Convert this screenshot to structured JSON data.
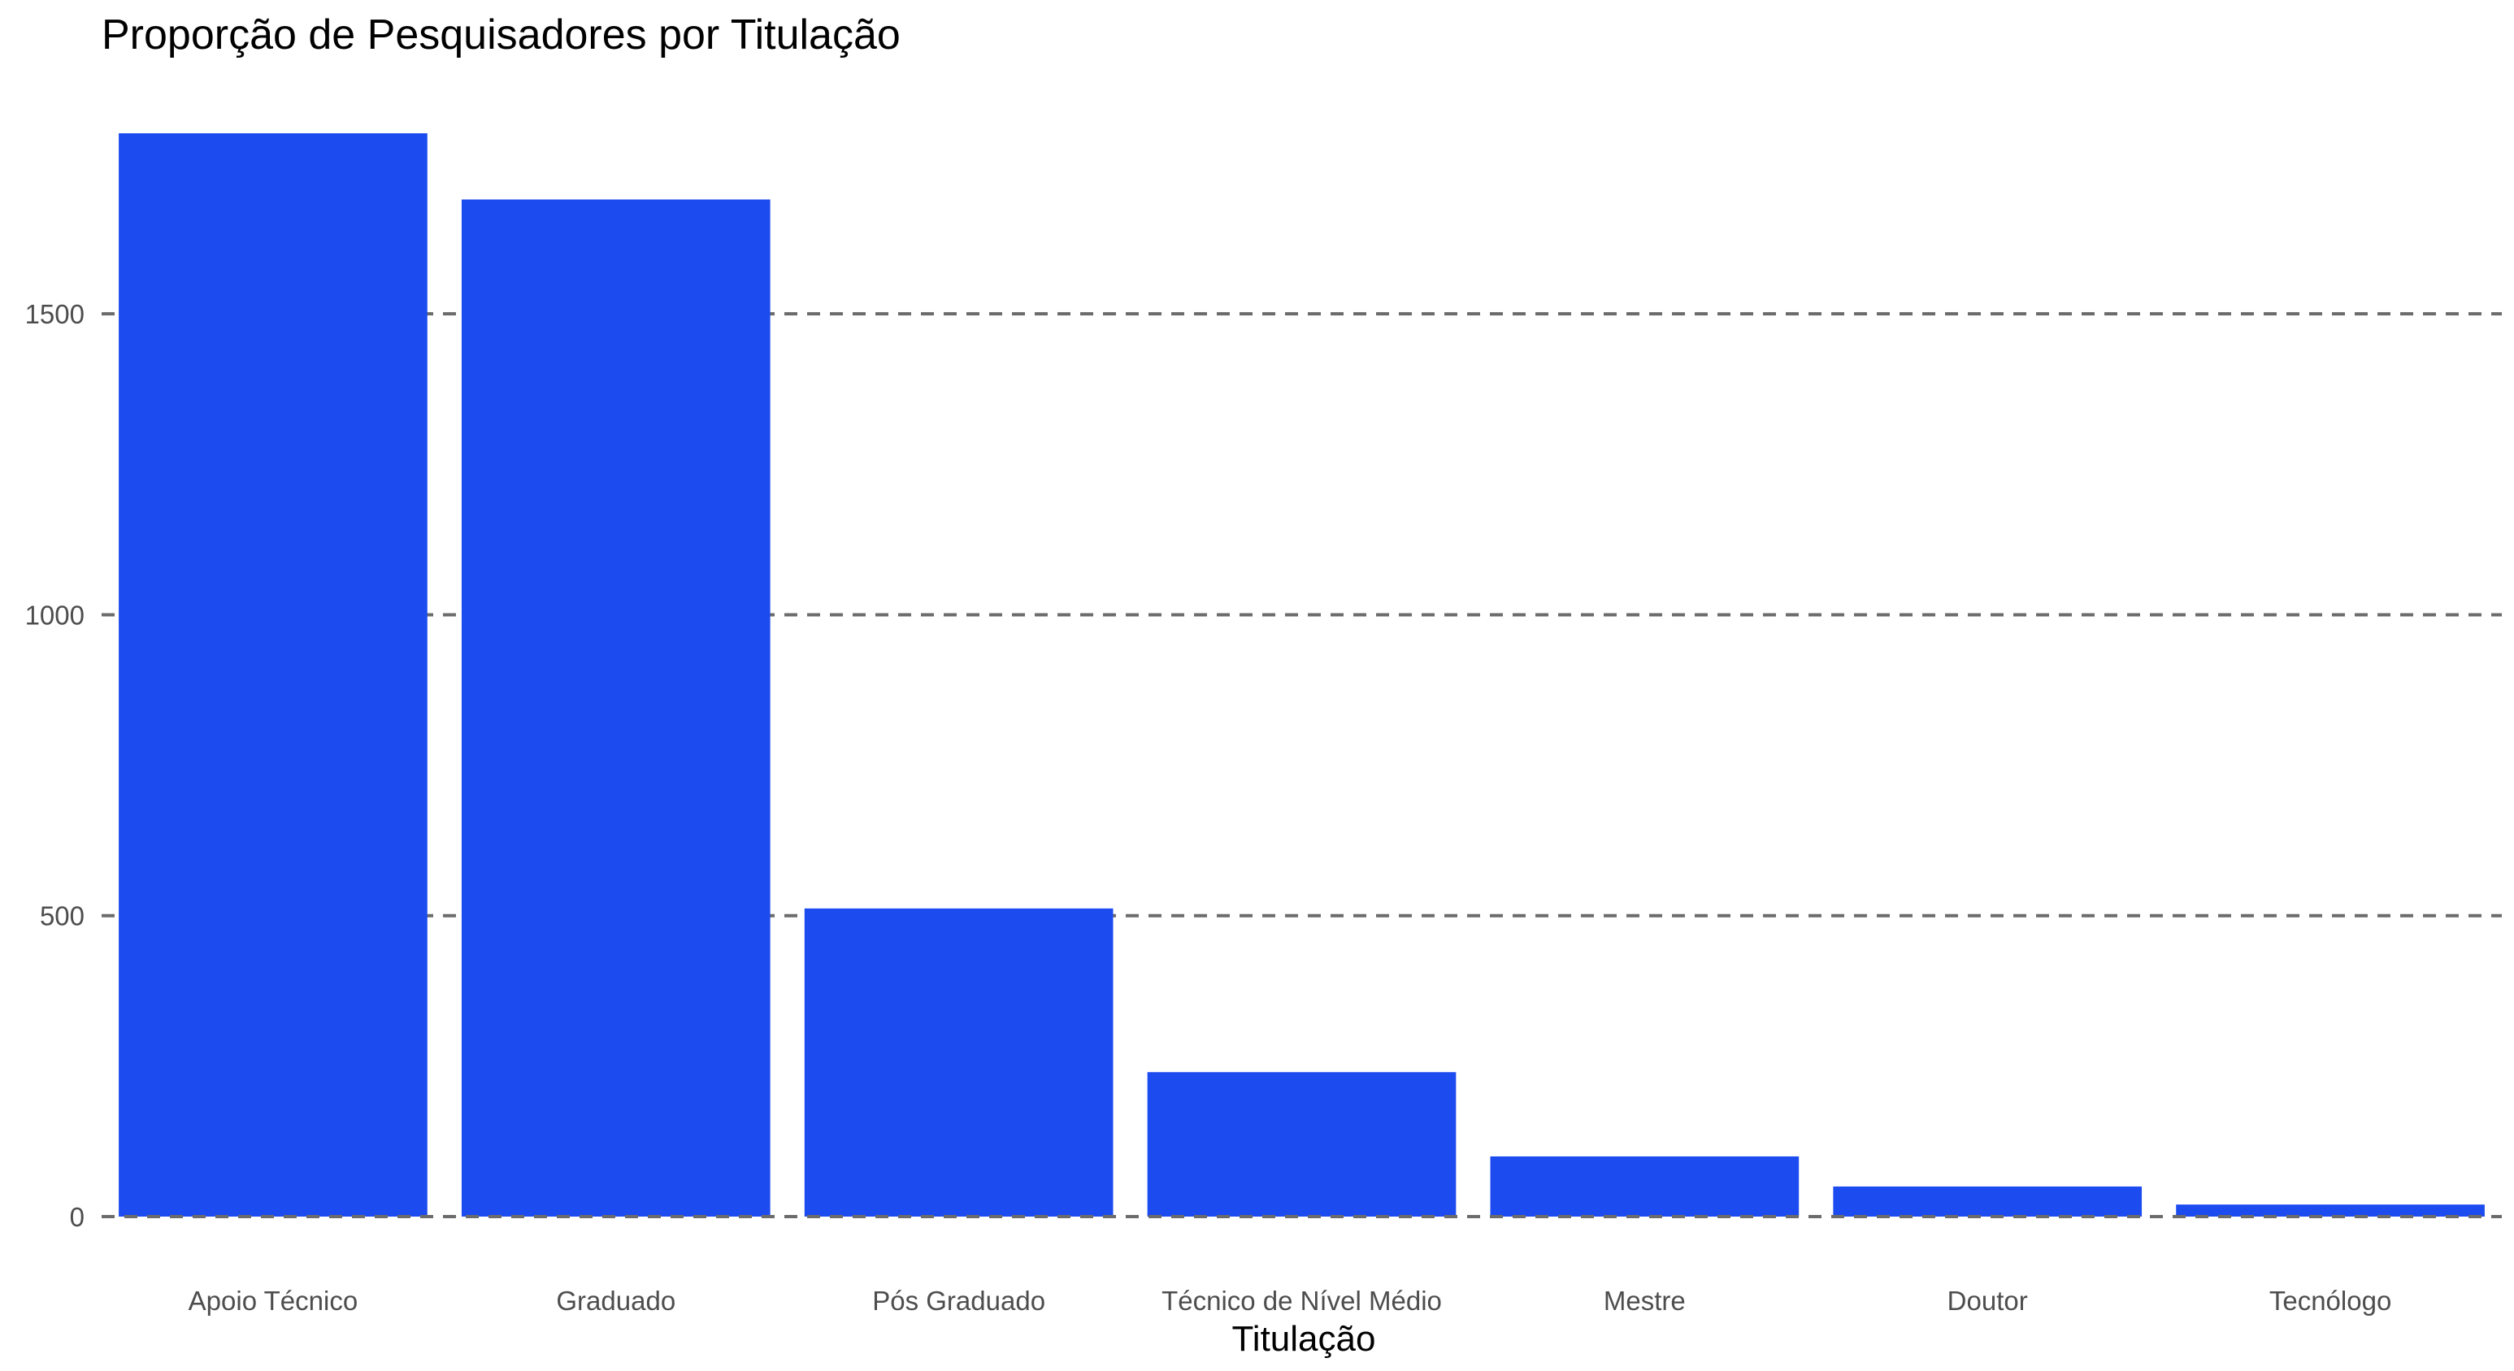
{
  "chart_data": {
    "type": "bar",
    "title": "Proporção de Pesquisadores por Titulação",
    "xlabel": "Titulação",
    "ylabel": "",
    "categories": [
      "Apoio Técnico",
      "Graduado",
      "Pós Graduado",
      "Técnico de Nível Médio",
      "Mestre",
      "Doutor",
      "Tecnólogo"
    ],
    "values": [
      1800,
      1690,
      512,
      240,
      100,
      50,
      20
    ],
    "ylim": [
      0,
      1800
    ],
    "yticks": [
      0,
      500,
      1000,
      1500
    ],
    "ytick_labels": [
      "0",
      "500",
      "1000",
      "1500"
    ],
    "grid": "horizontal dashed",
    "legend": "none",
    "bar_color": "#1c4bef"
  }
}
